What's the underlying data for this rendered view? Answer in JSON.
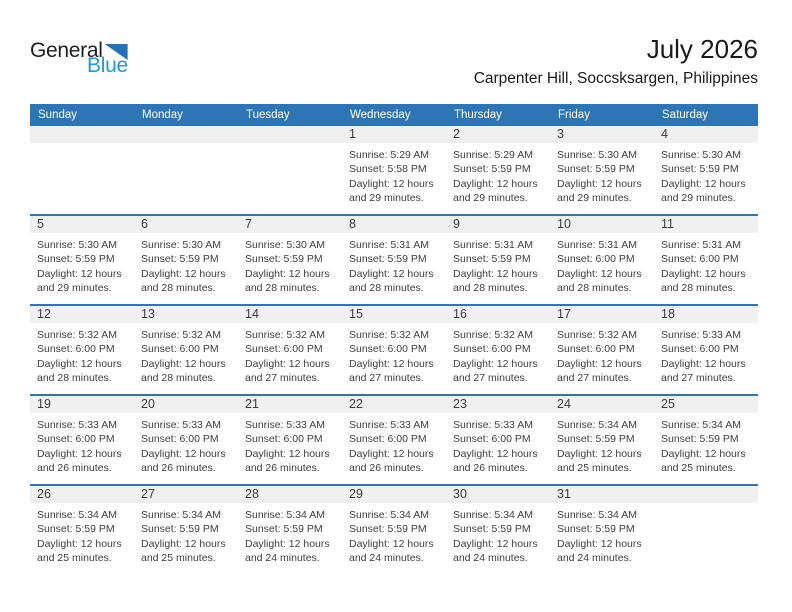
{
  "logo": {
    "line1": "General",
    "line2": "Blue"
  },
  "header": {
    "title": "July 2026",
    "subtitle": "Carpenter Hill, Soccsksargen, Philippines"
  },
  "weekdays": [
    "Sunday",
    "Monday",
    "Tuesday",
    "Wednesday",
    "Thursday",
    "Friday",
    "Saturday"
  ],
  "colors": {
    "header_blue": "#2E75B6",
    "row_divider_blue": "#2E75B6",
    "date_strip_gray": "#F0F0F0",
    "logo_blue_text": "#1D9BD7",
    "logo_triangle_blue": "#2571B8"
  },
  "weeks": [
    {
      "cells": [
        null,
        null,
        null,
        {
          "date": "1",
          "sunrise": "Sunrise: 5:29 AM",
          "sunset": "Sunset: 5:58 PM",
          "daylight": "Daylight: 12 hours and 29 minutes."
        },
        {
          "date": "2",
          "sunrise": "Sunrise: 5:29 AM",
          "sunset": "Sunset: 5:59 PM",
          "daylight": "Daylight: 12 hours and 29 minutes."
        },
        {
          "date": "3",
          "sunrise": "Sunrise: 5:30 AM",
          "sunset": "Sunset: 5:59 PM",
          "daylight": "Daylight: 12 hours and 29 minutes."
        },
        {
          "date": "4",
          "sunrise": "Sunrise: 5:30 AM",
          "sunset": "Sunset: 5:59 PM",
          "daylight": "Daylight: 12 hours and 29 minutes."
        }
      ]
    },
    {
      "cells": [
        {
          "date": "5",
          "sunrise": "Sunrise: 5:30 AM",
          "sunset": "Sunset: 5:59 PM",
          "daylight": "Daylight: 12 hours and 29 minutes."
        },
        {
          "date": "6",
          "sunrise": "Sunrise: 5:30 AM",
          "sunset": "Sunset: 5:59 PM",
          "daylight": "Daylight: 12 hours and 28 minutes."
        },
        {
          "date": "7",
          "sunrise": "Sunrise: 5:30 AM",
          "sunset": "Sunset: 5:59 PM",
          "daylight": "Daylight: 12 hours and 28 minutes."
        },
        {
          "date": "8",
          "sunrise": "Sunrise: 5:31 AM",
          "sunset": "Sunset: 5:59 PM",
          "daylight": "Daylight: 12 hours and 28 minutes."
        },
        {
          "date": "9",
          "sunrise": "Sunrise: 5:31 AM",
          "sunset": "Sunset: 5:59 PM",
          "daylight": "Daylight: 12 hours and 28 minutes."
        },
        {
          "date": "10",
          "sunrise": "Sunrise: 5:31 AM",
          "sunset": "Sunset: 6:00 PM",
          "daylight": "Daylight: 12 hours and 28 minutes."
        },
        {
          "date": "11",
          "sunrise": "Sunrise: 5:31 AM",
          "sunset": "Sunset: 6:00 PM",
          "daylight": "Daylight: 12 hours and 28 minutes."
        }
      ]
    },
    {
      "cells": [
        {
          "date": "12",
          "sunrise": "Sunrise: 5:32 AM",
          "sunset": "Sunset: 6:00 PM",
          "daylight": "Daylight: 12 hours and 28 minutes."
        },
        {
          "date": "13",
          "sunrise": "Sunrise: 5:32 AM",
          "sunset": "Sunset: 6:00 PM",
          "daylight": "Daylight: 12 hours and 28 minutes."
        },
        {
          "date": "14",
          "sunrise": "Sunrise: 5:32 AM",
          "sunset": "Sunset: 6:00 PM",
          "daylight": "Daylight: 12 hours and 27 minutes."
        },
        {
          "date": "15",
          "sunrise": "Sunrise: 5:32 AM",
          "sunset": "Sunset: 6:00 PM",
          "daylight": "Daylight: 12 hours and 27 minutes."
        },
        {
          "date": "16",
          "sunrise": "Sunrise: 5:32 AM",
          "sunset": "Sunset: 6:00 PM",
          "daylight": "Daylight: 12 hours and 27 minutes."
        },
        {
          "date": "17",
          "sunrise": "Sunrise: 5:32 AM",
          "sunset": "Sunset: 6:00 PM",
          "daylight": "Daylight: 12 hours and 27 minutes."
        },
        {
          "date": "18",
          "sunrise": "Sunrise: 5:33 AM",
          "sunset": "Sunset: 6:00 PM",
          "daylight": "Daylight: 12 hours and 27 minutes."
        }
      ]
    },
    {
      "cells": [
        {
          "date": "19",
          "sunrise": "Sunrise: 5:33 AM",
          "sunset": "Sunset: 6:00 PM",
          "daylight": "Daylight: 12 hours and 26 minutes."
        },
        {
          "date": "20",
          "sunrise": "Sunrise: 5:33 AM",
          "sunset": "Sunset: 6:00 PM",
          "daylight": "Daylight: 12 hours and 26 minutes."
        },
        {
          "date": "21",
          "sunrise": "Sunrise: 5:33 AM",
          "sunset": "Sunset: 6:00 PM",
          "daylight": "Daylight: 12 hours and 26 minutes."
        },
        {
          "date": "22",
          "sunrise": "Sunrise: 5:33 AM",
          "sunset": "Sunset: 6:00 PM",
          "daylight": "Daylight: 12 hours and 26 minutes."
        },
        {
          "date": "23",
          "sunrise": "Sunrise: 5:33 AM",
          "sunset": "Sunset: 6:00 PM",
          "daylight": "Daylight: 12 hours and 26 minutes."
        },
        {
          "date": "24",
          "sunrise": "Sunrise: 5:34 AM",
          "sunset": "Sunset: 5:59 PM",
          "daylight": "Daylight: 12 hours and 25 minutes."
        },
        {
          "date": "25",
          "sunrise": "Sunrise: 5:34 AM",
          "sunset": "Sunset: 5:59 PM",
          "daylight": "Daylight: 12 hours and 25 minutes."
        }
      ]
    },
    {
      "cells": [
        {
          "date": "26",
          "sunrise": "Sunrise: 5:34 AM",
          "sunset": "Sunset: 5:59 PM",
          "daylight": "Daylight: 12 hours and 25 minutes."
        },
        {
          "date": "27",
          "sunrise": "Sunrise: 5:34 AM",
          "sunset": "Sunset: 5:59 PM",
          "daylight": "Daylight: 12 hours and 25 minutes."
        },
        {
          "date": "28",
          "sunrise": "Sunrise: 5:34 AM",
          "sunset": "Sunset: 5:59 PM",
          "daylight": "Daylight: 12 hours and 24 minutes."
        },
        {
          "date": "29",
          "sunrise": "Sunrise: 5:34 AM",
          "sunset": "Sunset: 5:59 PM",
          "daylight": "Daylight: 12 hours and 24 minutes."
        },
        {
          "date": "30",
          "sunrise": "Sunrise: 5:34 AM",
          "sunset": "Sunset: 5:59 PM",
          "daylight": "Daylight: 12 hours and 24 minutes."
        },
        {
          "date": "31",
          "sunrise": "Sunrise: 5:34 AM",
          "sunset": "Sunset: 5:59 PM",
          "daylight": "Daylight: 12 hours and 24 minutes."
        },
        null
      ]
    }
  ]
}
